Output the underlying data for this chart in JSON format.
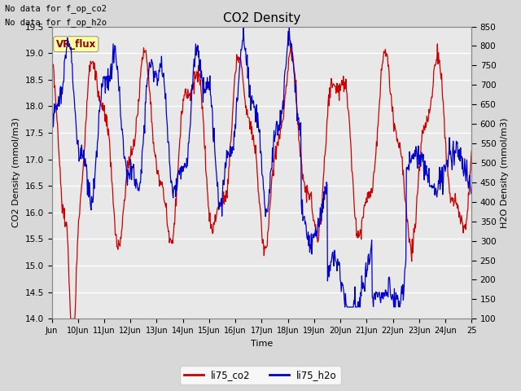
{
  "title": "CO2 Density",
  "xlabel": "Time",
  "ylabel_left": "CO2 Density (mmol/m3)",
  "ylabel_right": "H2O Density (mmol/m3)",
  "top_text_line1": "No data for f_op_co2",
  "top_text_line2": "No data for f_op_h2o",
  "vr_flux_label": "VR_flux",
  "ylim_left": [
    14.0,
    19.5
  ],
  "ylim_right": [
    100,
    850
  ],
  "yticks_left": [
    14.0,
    14.5,
    15.0,
    15.5,
    16.0,
    16.5,
    17.0,
    17.5,
    18.0,
    18.5,
    19.0,
    19.5
  ],
  "yticks_right": [
    100,
    150,
    200,
    250,
    300,
    350,
    400,
    450,
    500,
    550,
    600,
    650,
    700,
    750,
    800,
    850
  ],
  "xtick_labels": [
    "Jun",
    "10Jun",
    "11Jun",
    "12Jun",
    "13Jun",
    "14Jun",
    "15Jun",
    "16Jun",
    "17Jun",
    "18Jun",
    "19Jun",
    "20Jun",
    "21Jun",
    "22Jun",
    "23Jun",
    "24Jun",
    "25"
  ],
  "legend_entries": [
    "li75_co2",
    "li75_h2o"
  ],
  "line_colors": [
    "#cc0000",
    "#0000cc"
  ],
  "background_color": "#d8d8d8",
  "plot_bg_color": "#e8e8e8",
  "grid_color": "#ffffff",
  "n_points": 800
}
